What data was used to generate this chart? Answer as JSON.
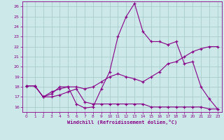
{
  "xlabel": "Windchill (Refroidissement éolien,°C)",
  "background_color": "#cce8e8",
  "grid_color": "#aacccc",
  "line_color": "#880088",
  "ylim": [
    15.5,
    26.5
  ],
  "xlim": [
    -0.5,
    23.5
  ],
  "yticks": [
    16,
    17,
    18,
    19,
    20,
    21,
    22,
    23,
    24,
    25,
    26
  ],
  "xticks": [
    0,
    1,
    2,
    3,
    4,
    5,
    6,
    7,
    8,
    9,
    10,
    11,
    12,
    13,
    14,
    15,
    16,
    17,
    18,
    19,
    20,
    21,
    22,
    23
  ],
  "series1_x": [
    0,
    1,
    2,
    3,
    4,
    5,
    6,
    7,
    8,
    9,
    10,
    11,
    12,
    13,
    14,
    15,
    16,
    17,
    18,
    19,
    20,
    21,
    22,
    23
  ],
  "series1_y": [
    18.1,
    18.1,
    17.0,
    17.5,
    17.8,
    18.0,
    16.3,
    15.9,
    16.0,
    17.8,
    19.5,
    23.0,
    25.0,
    26.3,
    23.5,
    22.5,
    22.5,
    22.2,
    22.5,
    20.3,
    20.5,
    18.0,
    16.8,
    15.8
  ],
  "series2_x": [
    0,
    1,
    2,
    3,
    4,
    5,
    6,
    7,
    8,
    9,
    10,
    11,
    12,
    13,
    14,
    15,
    16,
    17,
    18,
    19,
    20,
    21,
    22,
    23
  ],
  "series2_y": [
    18.1,
    18.1,
    17.0,
    17.3,
    18.0,
    18.0,
    18.0,
    17.8,
    18.0,
    18.5,
    19.0,
    19.3,
    19.0,
    18.8,
    18.5,
    19.0,
    19.5,
    20.3,
    20.5,
    21.0,
    21.5,
    21.8,
    22.0,
    22.0
  ],
  "series3_x": [
    0,
    1,
    2,
    3,
    4,
    5,
    6,
    7,
    8,
    9,
    10,
    11,
    12,
    13,
    14,
    15,
    16,
    17,
    18,
    19,
    20,
    21,
    22,
    23
  ],
  "series3_y": [
    18.1,
    18.1,
    17.0,
    17.0,
    17.2,
    17.5,
    17.8,
    16.5,
    16.3,
    16.3,
    16.3,
    16.3,
    16.3,
    16.3,
    16.3,
    16.0,
    16.0,
    16.0,
    16.0,
    16.0,
    16.0,
    16.0,
    15.8,
    15.8
  ]
}
